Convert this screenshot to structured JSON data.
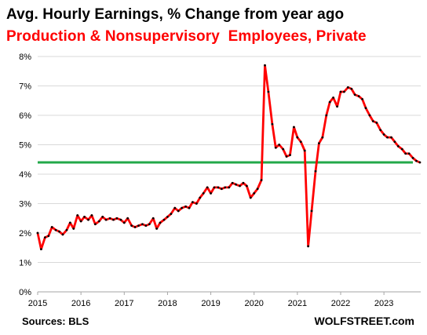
{
  "header": {
    "title": "Avg. Hourly Earnings, % Change from year ago",
    "subtitle": "Production & Nonsupervisory  Employees, Private"
  },
  "footer": {
    "source": "Sources: BLS",
    "brand": "WOLFSTREET.com"
  },
  "chart_data": {
    "type": "line",
    "title": "Avg. Hourly Earnings, % Change from year ago",
    "subtitle": "Production & Nonsupervisory  Employees, Private",
    "xlabel": "",
    "ylabel": "",
    "xlim": [
      2015,
      2023.85
    ],
    "ylim": [
      0,
      8
    ],
    "x_ticks": [
      2015,
      2016,
      2017,
      2018,
      2019,
      2020,
      2021,
      2022,
      2023
    ],
    "x_tick_labels": [
      "2015",
      "2016",
      "2017",
      "2018",
      "2019",
      "2020",
      "2021",
      "2022",
      "2023"
    ],
    "y_ticks": [
      0,
      1,
      2,
      3,
      4,
      5,
      6,
      7,
      8
    ],
    "y_tick_labels": [
      "0%",
      "1%",
      "2%",
      "3%",
      "4%",
      "5%",
      "6%",
      "7%",
      "8%"
    ],
    "grid": {
      "horizontal": true,
      "vertical": false
    },
    "reference_line": {
      "value": 4.4,
      "color": "#22a84a"
    },
    "line_color": "#ff0000",
    "marker_color": "#000000",
    "series": [
      {
        "x": [
          2015.0,
          2015.08,
          2015.17,
          2015.25,
          2015.33,
          2015.42,
          2015.5,
          2015.58,
          2015.67,
          2015.75,
          2015.83,
          2015.92,
          2016.0,
          2016.08,
          2016.17,
          2016.25,
          2016.33,
          2016.42,
          2016.5,
          2016.58,
          2016.67,
          2016.75,
          2016.83,
          2016.92,
          2017.0,
          2017.08,
          2017.17,
          2017.25,
          2017.33,
          2017.42,
          2017.5,
          2017.58,
          2017.67,
          2017.75,
          2017.83,
          2017.92,
          2018.0,
          2018.08,
          2018.17,
          2018.25,
          2018.33,
          2018.42,
          2018.5,
          2018.58,
          2018.67,
          2018.75,
          2018.83,
          2018.92,
          2019.0,
          2019.08,
          2019.17,
          2019.25,
          2019.33,
          2019.42,
          2019.5,
          2019.58,
          2019.67,
          2019.75,
          2019.83,
          2019.92,
          2020.0,
          2020.08,
          2020.17,
          2020.25,
          2020.33,
          2020.42,
          2020.5,
          2020.58,
          2020.67,
          2020.75,
          2020.83,
          2020.92,
          2021.0,
          2021.08,
          2021.17,
          2021.25,
          2021.33,
          2021.42,
          2021.5,
          2021.58,
          2021.67,
          2021.75,
          2021.83,
          2021.92,
          2022.0,
          2022.08,
          2022.17,
          2022.25,
          2022.33,
          2022.42,
          2022.5,
          2022.58,
          2022.67,
          2022.75,
          2022.83,
          2022.92,
          2023.0,
          2023.08,
          2023.17,
          2023.25,
          2023.33,
          2023.42,
          2023.5,
          2023.58,
          2023.67,
          2023.75,
          2023.83
        ],
        "values": [
          2.0,
          1.45,
          1.85,
          1.9,
          2.2,
          2.1,
          2.05,
          1.95,
          2.1,
          2.35,
          2.15,
          2.6,
          2.4,
          2.55,
          2.45,
          2.6,
          2.3,
          2.4,
          2.55,
          2.45,
          2.5,
          2.45,
          2.5,
          2.45,
          2.35,
          2.5,
          2.25,
          2.2,
          2.25,
          2.3,
          2.25,
          2.3,
          2.5,
          2.15,
          2.35,
          2.45,
          2.55,
          2.65,
          2.85,
          2.75,
          2.85,
          2.9,
          2.85,
          3.05,
          3.0,
          3.2,
          3.35,
          3.55,
          3.35,
          3.55,
          3.55,
          3.5,
          3.55,
          3.55,
          3.7,
          3.65,
          3.6,
          3.7,
          3.6,
          3.2,
          3.35,
          3.5,
          3.8,
          7.7,
          6.8,
          5.7,
          4.9,
          5.0,
          4.85,
          4.6,
          4.65,
          5.6,
          5.25,
          5.1,
          4.8,
          1.55,
          2.75,
          4.1,
          5.05,
          5.25,
          6.0,
          6.45,
          6.6,
          6.3,
          6.8,
          6.8,
          6.95,
          6.9,
          6.7,
          6.65,
          6.55,
          6.25,
          6.0,
          5.8,
          5.75,
          5.5,
          5.35,
          5.25,
          5.25,
          5.1,
          4.95,
          4.85,
          4.7,
          4.7,
          4.55,
          4.45,
          4.4
        ]
      }
    ]
  }
}
